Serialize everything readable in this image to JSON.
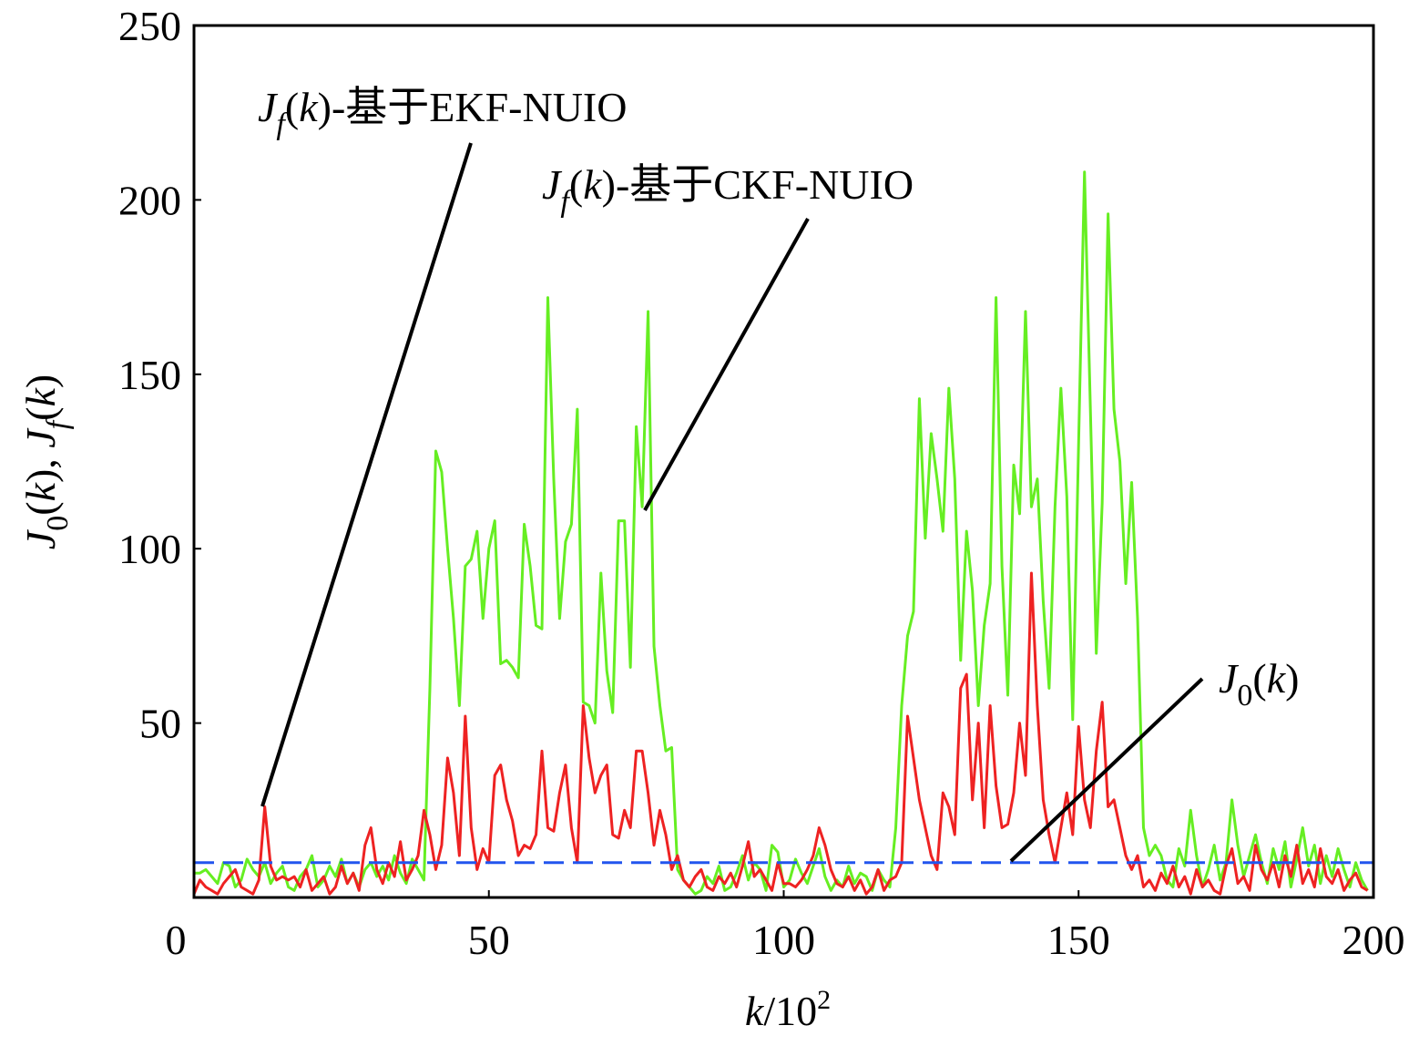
{
  "chart_data": {
    "type": "line",
    "xlabel": [
      {
        "text": "k",
        "style": "italic"
      },
      {
        "text": "/10",
        "style": "normal"
      },
      {
        "text": "2",
        "style": "sup"
      }
    ],
    "ylabel": [
      {
        "text": "J",
        "style": "italic"
      },
      {
        "text": "0",
        "style": "sub"
      },
      {
        "text": "(",
        "style": "normal"
      },
      {
        "text": "k",
        "style": "italic"
      },
      {
        "text": "), ",
        "style": "normal"
      },
      {
        "text": "J",
        "style": "italic"
      },
      {
        "text": "f",
        "style": "sub-italic"
      },
      {
        "text": "(",
        "style": "normal"
      },
      {
        "text": "k",
        "style": "italic"
      },
      {
        "text": ")",
        "style": "normal"
      }
    ],
    "xlim": [
      0,
      200
    ],
    "xticks": [
      0,
      50,
      100,
      150,
      200
    ],
    "ylim": [
      0,
      250
    ],
    "yticks": [
      0,
      50,
      100,
      150,
      200,
      250
    ],
    "grid": false,
    "annotations": [
      {
        "series": 1,
        "label": [
          {
            "text": "J",
            "style": "italic"
          },
          {
            "text": "f",
            "style": "sub-italic"
          },
          {
            "text": "(",
            "style": "normal"
          },
          {
            "text": "k",
            "style": "italic"
          },
          {
            "text": ")-基于EKF-NUIO",
            "style": "normal"
          }
        ]
      },
      {
        "series": 0,
        "label": [
          {
            "text": "J",
            "style": "italic"
          },
          {
            "text": "f",
            "style": "sub-italic"
          },
          {
            "text": "(",
            "style": "normal"
          },
          {
            "text": "k",
            "style": "italic"
          },
          {
            "text": ")-基于CKF-NUIO",
            "style": "normal"
          }
        ]
      },
      {
        "series": 2,
        "label": [
          {
            "text": "J",
            "style": "italic"
          },
          {
            "text": "0",
            "style": "sub"
          },
          {
            "text": "(",
            "style": "normal"
          },
          {
            "text": "k",
            "style": "italic"
          },
          {
            "text": ")",
            "style": "normal"
          }
        ]
      }
    ],
    "series": [
      {
        "color": "#66ee22",
        "dash": false,
        "x": [
          0,
          1,
          2,
          3,
          4,
          5,
          6,
          7,
          8,
          9,
          10,
          11,
          12,
          13,
          14,
          15,
          16,
          17,
          18,
          19,
          20,
          21,
          22,
          23,
          24,
          25,
          26,
          27,
          28,
          29,
          30,
          31,
          32,
          33,
          34,
          35,
          36,
          37,
          38,
          39,
          40,
          41,
          42,
          43,
          44,
          45,
          46,
          47,
          48,
          49,
          50,
          51,
          52,
          53,
          54,
          55,
          56,
          57,
          58,
          59,
          60,
          61,
          62,
          63,
          64,
          65,
          66,
          67,
          68,
          69,
          70,
          71,
          72,
          73,
          74,
          75,
          76,
          77,
          78,
          79,
          80,
          81,
          82,
          83,
          84,
          85,
          86,
          87,
          88,
          89,
          90,
          91,
          92,
          93,
          94,
          95,
          96,
          97,
          98,
          99,
          100,
          101,
          102,
          103,
          104,
          105,
          106,
          107,
          108,
          109,
          110,
          111,
          112,
          113,
          114,
          115,
          116,
          117,
          118,
          119,
          120,
          121,
          122,
          123,
          124,
          125,
          126,
          127,
          128,
          129,
          130,
          131,
          132,
          133,
          134,
          135,
          136,
          137,
          138,
          139,
          140,
          141,
          142,
          143,
          144,
          145,
          146,
          147,
          148,
          149,
          150,
          151,
          152,
          153,
          154,
          155,
          156,
          157,
          158,
          159,
          160,
          161,
          162,
          163,
          164,
          165,
          166,
          167,
          168,
          169,
          170,
          171,
          172,
          173,
          174,
          175,
          176,
          177,
          178,
          179,
          180,
          181,
          182,
          183,
          184,
          185,
          186,
          187,
          188,
          189,
          190,
          191,
          192,
          193,
          194,
          195,
          196,
          197,
          198,
          199
        ],
        "values": [
          7,
          7,
          8,
          6,
          4,
          10,
          9,
          3,
          5,
          11,
          8,
          6,
          10,
          4,
          7,
          9,
          3,
          2,
          6,
          8,
          12,
          3,
          5,
          9,
          6,
          11,
          4,
          7,
          3,
          8,
          10,
          6,
          9,
          5,
          12,
          7,
          4,
          11,
          8,
          5,
          60,
          128,
          122,
          100,
          80,
          55,
          95,
          97,
          105,
          80,
          100,
          108,
          67,
          68,
          66,
          63,
          107,
          95,
          78,
          77,
          172,
          120,
          80,
          102,
          107,
          140,
          56,
          55,
          50,
          93,
          65,
          53,
          108,
          108,
          66,
          135,
          112,
          168,
          72,
          55,
          42,
          43,
          8,
          5,
          3,
          1,
          2,
          6,
          4,
          9,
          2,
          3,
          7,
          12,
          5,
          10,
          8,
          2,
          15,
          13,
          3,
          5,
          11,
          7,
          4,
          9,
          14,
          6,
          2,
          5,
          3,
          9,
          4,
          7,
          6,
          2,
          8,
          5,
          3,
          20,
          55,
          75,
          82,
          143,
          103,
          133,
          120,
          105,
          146,
          120,
          68,
          105,
          88,
          55,
          78,
          90,
          172,
          95,
          58,
          124,
          110,
          168,
          112,
          120,
          85,
          60,
          112,
          146,
          115,
          51,
          130,
          208,
          140,
          70,
          113,
          196,
          140,
          125,
          90,
          119,
          80,
          20,
          12,
          15,
          12,
          5,
          3,
          14,
          9,
          25,
          12,
          3,
          8,
          15,
          5,
          10,
          28,
          15,
          6,
          12,
          18,
          10,
          4,
          14,
          8,
          16,
          3,
          11,
          20,
          9,
          15,
          4,
          12,
          6,
          14,
          8,
          3,
          10,
          5,
          2
        ]
      },
      {
        "color": "#ee2222",
        "dash": false,
        "x": [
          0,
          1,
          2,
          3,
          4,
          5,
          6,
          7,
          8,
          9,
          10,
          11,
          12,
          13,
          14,
          15,
          16,
          17,
          18,
          19,
          20,
          21,
          22,
          23,
          24,
          25,
          26,
          27,
          28,
          29,
          30,
          31,
          32,
          33,
          34,
          35,
          36,
          37,
          38,
          39,
          40,
          41,
          42,
          43,
          44,
          45,
          46,
          47,
          48,
          49,
          50,
          51,
          52,
          53,
          54,
          55,
          56,
          57,
          58,
          59,
          60,
          61,
          62,
          63,
          64,
          65,
          66,
          67,
          68,
          69,
          70,
          71,
          72,
          73,
          74,
          75,
          76,
          77,
          78,
          79,
          80,
          81,
          82,
          83,
          84,
          85,
          86,
          87,
          88,
          89,
          90,
          91,
          92,
          93,
          94,
          95,
          96,
          97,
          98,
          99,
          100,
          101,
          102,
          103,
          104,
          105,
          106,
          107,
          108,
          109,
          110,
          111,
          112,
          113,
          114,
          115,
          116,
          117,
          118,
          119,
          120,
          121,
          122,
          123,
          124,
          125,
          126,
          127,
          128,
          129,
          130,
          131,
          132,
          133,
          134,
          135,
          136,
          137,
          138,
          139,
          140,
          141,
          142,
          143,
          144,
          145,
          146,
          147,
          148,
          149,
          150,
          151,
          152,
          153,
          154,
          155,
          156,
          157,
          158,
          159,
          160,
          161,
          162,
          163,
          164,
          165,
          166,
          167,
          168,
          169,
          170,
          171,
          172,
          173,
          174,
          175,
          176,
          177,
          178,
          179,
          180,
          181,
          182,
          183,
          184,
          185,
          186,
          187,
          188,
          189,
          190,
          191,
          192,
          193,
          194,
          195,
          196,
          197,
          198,
          199
        ],
        "values": [
          1,
          5,
          3,
          2,
          1,
          4,
          6,
          8,
          3,
          2,
          1,
          5,
          26,
          9,
          5,
          6,
          5,
          6,
          3,
          8,
          2,
          4,
          6,
          1,
          3,
          9,
          4,
          7,
          2,
          15,
          20,
          8,
          4,
          10,
          6,
          16,
          5,
          8,
          12,
          25,
          18,
          8,
          15,
          40,
          30,
          12,
          52,
          20,
          8,
          14,
          10,
          35,
          38,
          28,
          22,
          12,
          15,
          14,
          18,
          42,
          20,
          19,
          30,
          38,
          20,
          10,
          55,
          40,
          30,
          35,
          38,
          18,
          17,
          25,
          20,
          42,
          42,
          30,
          15,
          25,
          18,
          8,
          12,
          5,
          3,
          6,
          8,
          3,
          2,
          6,
          4,
          7,
          3,
          9,
          16,
          6,
          8,
          5,
          2,
          10,
          4,
          4,
          3,
          5,
          8,
          12,
          20,
          15,
          8,
          4,
          3,
          6,
          2,
          5,
          1,
          3,
          8,
          2,
          5,
          6,
          10,
          52,
          40,
          28,
          20,
          12,
          8,
          30,
          26,
          18,
          60,
          64,
          28,
          50,
          20,
          55,
          32,
          20,
          21,
          30,
          50,
          35,
          93,
          55,
          28,
          18,
          10,
          20,
          30,
          18,
          49,
          28,
          20,
          42,
          56,
          26,
          28,
          20,
          12,
          8,
          12,
          3,
          5,
          2,
          7,
          4,
          9,
          3,
          6,
          1,
          8,
          3,
          5,
          2,
          1,
          9,
          14,
          4,
          6,
          2,
          15,
          8,
          5,
          10,
          3,
          12,
          6,
          15,
          4,
          8,
          3,
          14,
          6,
          4,
          8,
          2,
          5,
          7,
          3,
          2
        ]
      },
      {
        "color": "#2255ee",
        "dash": true,
        "x": [
          0,
          200
        ],
        "values": [
          10,
          10
        ]
      }
    ]
  }
}
